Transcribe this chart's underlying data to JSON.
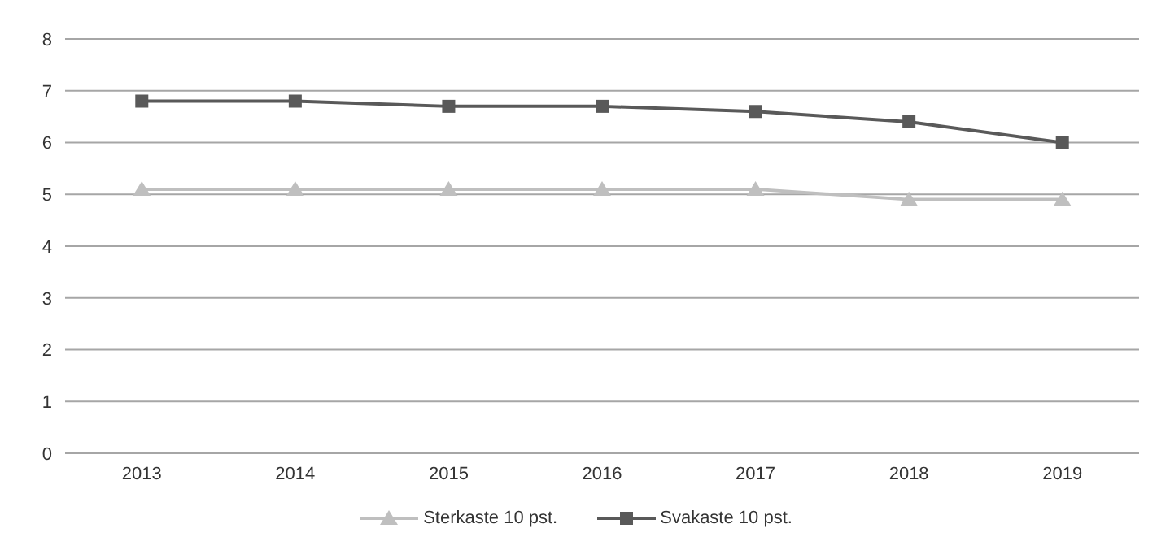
{
  "chart_data": {
    "type": "line",
    "categories": [
      "2013",
      "2014",
      "2015",
      "2016",
      "2017",
      "2018",
      "2019"
    ],
    "series": [
      {
        "name": "Sterkaste 10 pst.",
        "color": "#bfbfbf",
        "marker": "triangle",
        "values": [
          5.1,
          5.1,
          5.1,
          5.1,
          5.1,
          4.9,
          4.9
        ]
      },
      {
        "name": "Svakaste 10 pst.",
        "color": "#595959",
        "marker": "square",
        "values": [
          6.8,
          6.8,
          6.7,
          6.7,
          6.6,
          6.4,
          6.0
        ]
      }
    ],
    "ylim": [
      0,
      8
    ],
    "yticks": [
      0,
      1,
      2,
      3,
      4,
      5,
      6,
      7,
      8
    ],
    "grid": "y",
    "legend": "bottom",
    "line_style": "solid"
  }
}
